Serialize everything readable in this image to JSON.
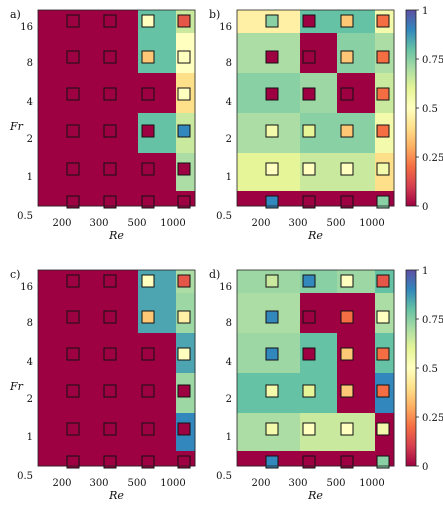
{
  "chart_data": {
    "type": "heatmap",
    "colormap": "Spectral",
    "colorbar_ticks": [
      "0",
      "0.25",
      "0.5",
      "0.75",
      "1"
    ],
    "x_ticks": [
      "200",
      "300",
      "500",
      "1000"
    ],
    "y_ticks": [
      "16",
      "8",
      "4",
      "2",
      "1",
      "0.5"
    ],
    "xlabel": "Re",
    "ylabel": "Fr",
    "grid_x": [
      150,
      200,
      300,
      500,
      750,
      1000
    ],
    "grid_y": [
      16,
      8,
      4,
      2,
      1,
      0.5
    ],
    "markers_x": [
      250,
      400,
      625,
      875
    ],
    "markers_y": [
      16,
      8,
      4,
      2,
      1,
      0.5
    ],
    "panels": [
      {
        "label": "a)",
        "colorbar": false,
        "cells": [
          [
            0,
            0,
            0,
            0.8,
            0.65,
            0.65
          ],
          [
            0,
            0,
            0,
            0.8,
            0.5,
            0.5
          ],
          [
            0,
            0,
            0,
            0,
            0.4,
            0.4
          ],
          [
            0,
            0,
            0,
            0.8,
            0.65,
            0.65
          ],
          [
            0,
            0,
            0,
            0,
            0.7,
            0.7
          ],
          [
            0,
            0,
            0,
            0,
            0,
            0
          ]
        ],
        "markers": [
          [
            0,
            0,
            0.5,
            0.15
          ],
          [
            0,
            0,
            0.35,
            0.5
          ],
          [
            0,
            0,
            0,
            0.5
          ],
          [
            0,
            0,
            0,
            0.9
          ],
          [
            0,
            0,
            0,
            0
          ],
          [
            0,
            0,
            0,
            0
          ]
        ]
      },
      {
        "label": "b)",
        "colorbar": true,
        "cells": [
          [
            0.45,
            0.45,
            0.8,
            0.8,
            0.55,
            0.55
          ],
          [
            0.7,
            0.7,
            0,
            0.75,
            0.7,
            0.7
          ],
          [
            0.75,
            0.75,
            0.72,
            0,
            0.65,
            0.65
          ],
          [
            0.7,
            0.7,
            0.75,
            0.75,
            0.55,
            0.55
          ],
          [
            0.6,
            0.6,
            0.65,
            0.65,
            0.4,
            0.4
          ],
          [
            0,
            0,
            0,
            0,
            0,
            0
          ]
        ],
        "markers": [
          [
            0.75,
            0,
            0.35,
            0.2
          ],
          [
            0,
            0,
            0.35,
            0.2
          ],
          [
            0,
            0,
            0,
            0.2
          ],
          [
            0.55,
            0.6,
            0.35,
            0.2
          ],
          [
            0.5,
            0.5,
            0.5,
            0.55
          ],
          [
            0.9,
            0,
            0,
            0.75
          ]
        ]
      },
      {
        "label": "c)",
        "colorbar": false,
        "cells": [
          [
            0,
            0,
            0,
            0.85,
            0.7,
            0.7
          ],
          [
            0,
            0,
            0,
            0.85,
            0.72,
            0.72
          ],
          [
            0,
            0,
            0,
            0,
            0.85,
            0.85
          ],
          [
            0,
            0,
            0,
            0,
            0.72,
            0.72
          ],
          [
            0,
            0,
            0,
            0,
            0.9,
            0.9
          ],
          [
            0,
            0,
            0,
            0,
            0,
            0
          ]
        ],
        "markers": [
          [
            0,
            0,
            0.5,
            0.15
          ],
          [
            0,
            0,
            0.35,
            0.45
          ],
          [
            0,
            0,
            0,
            0.5
          ],
          [
            0,
            0,
            0,
            0
          ],
          [
            0,
            0,
            0,
            0
          ],
          [
            0,
            0,
            0,
            0
          ]
        ]
      },
      {
        "label": "d)",
        "colorbar": true,
        "cells": [
          [
            0.72,
            0.72,
            0.75,
            0.72,
            0.8,
            0.8
          ],
          [
            0.7,
            0.7,
            0,
            0,
            0.7,
            0.7
          ],
          [
            0.72,
            0.72,
            0.8,
            0,
            0.8,
            0.8
          ],
          [
            0.8,
            0.8,
            0.8,
            0,
            0.9,
            0.9
          ],
          [
            0.7,
            0.7,
            0.65,
            0.65,
            0,
            0
          ],
          [
            0,
            0,
            0,
            0,
            0,
            0
          ]
        ],
        "markers": [
          [
            0.65,
            0.9,
            0.5,
            0.15
          ],
          [
            0.9,
            0,
            0.2,
            0.5
          ],
          [
            0.9,
            0,
            0.35,
            0.2
          ],
          [
            0.55,
            0.6,
            0.35,
            0.2
          ],
          [
            0.55,
            0.5,
            0.5,
            0.55
          ],
          [
            0.9,
            0,
            0,
            0.75
          ]
        ]
      }
    ]
  }
}
